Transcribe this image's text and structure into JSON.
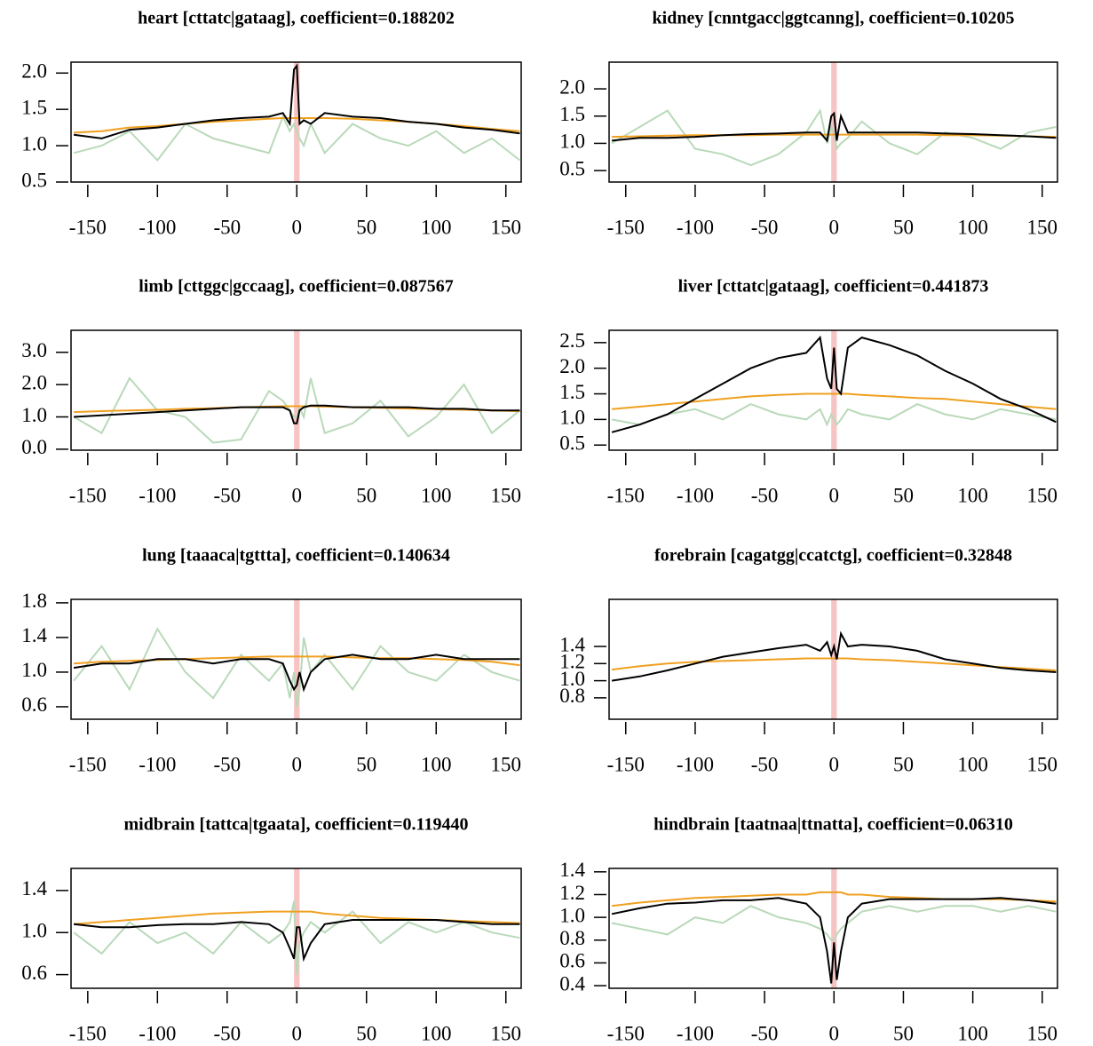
{
  "chart_data": [
    {
      "type": "line",
      "title": "heart [cttatc|gataag], coefficient=0.188202",
      "x": [
        -160,
        -140,
        -120,
        -100,
        -80,
        -60,
        -40,
        -20,
        -10,
        -5,
        -2,
        0,
        2,
        5,
        10,
        20,
        40,
        60,
        80,
        100,
        120,
        140,
        160
      ],
      "xlim": [
        -162,
        161
      ],
      "ylim": [
        0.5,
        2.15
      ],
      "xticks": [
        -150,
        -100,
        -50,
        0,
        50,
        100,
        150
      ],
      "yticks": [
        {
          "value": 0.5,
          "label": "0.5"
        },
        {
          "value": 1.0,
          "label": "1.0"
        },
        {
          "value": 1.5,
          "label": "1.5"
        },
        {
          "value": 2.0,
          "label": "2.0"
        }
      ],
      "highlight_x": [
        -2,
        2
      ],
      "highlight_color": "#f7c4c4",
      "series": [
        {
          "color": "#b9d9b9",
          "values": [
            0.9,
            1.0,
            1.2,
            0.8,
            1.3,
            1.1,
            1.0,
            0.9,
            1.4,
            1.2,
            1.3,
            1.2,
            1.1,
            1.0,
            1.3,
            0.9,
            1.3,
            1.1,
            1.0,
            1.2,
            0.9,
            1.1,
            0.8
          ]
        },
        {
          "color": "#f0a020",
          "values": [
            1.18,
            1.2,
            1.25,
            1.27,
            1.3,
            1.33,
            1.35,
            1.37,
            1.38,
            1.38,
            1.38,
            1.38,
            1.38,
            1.38,
            1.38,
            1.38,
            1.37,
            1.35,
            1.33,
            1.3,
            1.27,
            1.23,
            1.2
          ]
        },
        {
          "color": "#000000",
          "values": [
            1.15,
            1.1,
            1.22,
            1.25,
            1.3,
            1.35,
            1.38,
            1.4,
            1.45,
            1.3,
            2.05,
            2.1,
            1.3,
            1.35,
            1.3,
            1.45,
            1.4,
            1.38,
            1.33,
            1.3,
            1.25,
            1.22,
            1.17
          ]
        }
      ]
    },
    {
      "type": "line",
      "title": "kidney [cnntgacc|ggtcanng], coefficient=0.10205",
      "x": [
        -160,
        -140,
        -120,
        -100,
        -80,
        -60,
        -40,
        -20,
        -10,
        -5,
        -2,
        0,
        2,
        5,
        10,
        20,
        40,
        60,
        80,
        100,
        120,
        140,
        160
      ],
      "xlim": [
        -162,
        161
      ],
      "ylim": [
        0.29,
        2.49
      ],
      "xticks": [
        -150,
        -100,
        -50,
        0,
        50,
        100,
        150
      ],
      "yticks": [
        {
          "value": 0.5,
          "label": "0.5"
        },
        {
          "value": 1.0,
          "label": "1.0"
        },
        {
          "value": 1.5,
          "label": "1.5"
        },
        {
          "value": 2.0,
          "label": "2.0"
        }
      ],
      "highlight_x": [
        -2,
        2
      ],
      "highlight_color": "#f7c4c4",
      "series": [
        {
          "color": "#b9d9b9",
          "values": [
            1.0,
            1.3,
            1.6,
            0.9,
            0.8,
            0.6,
            0.8,
            1.2,
            1.6,
            1.0,
            1.3,
            1.2,
            0.9,
            1.0,
            1.1,
            1.4,
            1.0,
            0.8,
            1.2,
            1.1,
            0.9,
            1.2,
            1.3
          ]
        },
        {
          "color": "#f0a020",
          "values": [
            1.12,
            1.13,
            1.14,
            1.15,
            1.15,
            1.15,
            1.16,
            1.16,
            1.16,
            1.16,
            1.16,
            1.16,
            1.16,
            1.16,
            1.16,
            1.16,
            1.16,
            1.16,
            1.15,
            1.15,
            1.14,
            1.13,
            1.12
          ]
        },
        {
          "color": "#000000",
          "values": [
            1.05,
            1.1,
            1.1,
            1.12,
            1.15,
            1.17,
            1.18,
            1.2,
            1.2,
            1.05,
            1.5,
            1.55,
            1.05,
            1.5,
            1.2,
            1.2,
            1.2,
            1.2,
            1.18,
            1.17,
            1.15,
            1.13,
            1.1
          ]
        }
      ]
    },
    {
      "type": "line",
      "title": "limb [cttggc|gccaag], coefficient=0.087567",
      "x": [
        -160,
        -140,
        -120,
        -100,
        -80,
        -60,
        -40,
        -20,
        -10,
        -5,
        -2,
        0,
        2,
        5,
        10,
        20,
        40,
        60,
        80,
        100,
        120,
        140,
        160
      ],
      "xlim": [
        -162,
        161
      ],
      "ylim": [
        -0.03,
        3.68
      ],
      "xticks": [
        -150,
        -100,
        -50,
        0,
        50,
        100,
        150
      ],
      "yticks": [
        {
          "value": 0,
          "label": "0.0"
        },
        {
          "value": 1,
          "label": "1.0"
        },
        {
          "value": 2,
          "label": "2.0"
        },
        {
          "value": 3,
          "label": "3.0"
        }
      ],
      "highlight_x": [
        -2,
        2
      ],
      "highlight_color": "#f7c4c4",
      "series": [
        {
          "color": "#b9d9b9",
          "values": [
            1.0,
            0.5,
            2.2,
            1.2,
            1.0,
            0.2,
            0.3,
            1.8,
            1.5,
            1.2,
            1.0,
            1.0,
            1.3,
            1.0,
            2.2,
            0.5,
            0.8,
            1.5,
            0.4,
            1.0,
            2.0,
            0.5,
            1.2
          ]
        },
        {
          "color": "#f0a020",
          "values": [
            1.15,
            1.18,
            1.2,
            1.22,
            1.25,
            1.27,
            1.3,
            1.32,
            1.33,
            1.33,
            1.33,
            1.33,
            1.33,
            1.33,
            1.33,
            1.32,
            1.3,
            1.28,
            1.26,
            1.24,
            1.22,
            1.2,
            1.18
          ]
        },
        {
          "color": "#000000",
          "values": [
            1.0,
            1.05,
            1.1,
            1.15,
            1.2,
            1.25,
            1.3,
            1.3,
            1.3,
            1.2,
            0.8,
            0.8,
            1.2,
            1.3,
            1.35,
            1.35,
            1.3,
            1.3,
            1.3,
            1.25,
            1.25,
            1.2,
            1.2
          ]
        }
      ]
    },
    {
      "type": "line",
      "title": "liver [cttatc|gataag], coefficient=0.441873",
      "x": [
        -160,
        -140,
        -120,
        -100,
        -80,
        -60,
        -40,
        -20,
        -10,
        -5,
        -2,
        0,
        2,
        5,
        10,
        20,
        40,
        60,
        80,
        100,
        120,
        140,
        160
      ],
      "xlim": [
        -162,
        161
      ],
      "ylim": [
        0.4,
        2.74
      ],
      "xticks": [
        -150,
        -100,
        -50,
        0,
        50,
        100,
        150
      ],
      "yticks": [
        {
          "value": 0.5,
          "label": "0.5"
        },
        {
          "value": 1.0,
          "label": "1.0"
        },
        {
          "value": 1.5,
          "label": "1.5"
        },
        {
          "value": 2.0,
          "label": "2.0"
        },
        {
          "value": 2.5,
          "label": "2.5"
        }
      ],
      "highlight_x": [
        -2,
        2
      ],
      "highlight_color": "#f7c4c4",
      "series": [
        {
          "color": "#b9d9b9",
          "values": [
            1.0,
            0.9,
            1.1,
            1.2,
            1.0,
            1.3,
            1.1,
            1.0,
            1.2,
            0.9,
            1.1,
            1.0,
            0.9,
            1.0,
            1.2,
            1.1,
            1.0,
            1.3,
            1.1,
            1.0,
            1.2,
            1.1,
            1.0
          ]
        },
        {
          "color": "#f0a020",
          "values": [
            1.2,
            1.25,
            1.3,
            1.35,
            1.4,
            1.45,
            1.48,
            1.5,
            1.5,
            1.5,
            1.5,
            1.5,
            1.5,
            1.5,
            1.5,
            1.48,
            1.45,
            1.42,
            1.4,
            1.35,
            1.3,
            1.25,
            1.2
          ]
        },
        {
          "color": "#000000",
          "values": [
            0.75,
            0.9,
            1.1,
            1.4,
            1.7,
            2.0,
            2.2,
            2.3,
            2.6,
            1.8,
            1.6,
            2.4,
            1.6,
            1.5,
            2.4,
            2.6,
            2.45,
            2.25,
            1.95,
            1.7,
            1.4,
            1.2,
            0.95
          ]
        }
      ]
    },
    {
      "type": "line",
      "title": "lung [taaaca|tgttta], coefficient=0.140634",
      "x": [
        -160,
        -140,
        -120,
        -100,
        -80,
        -60,
        -40,
        -20,
        -10,
        -5,
        -2,
        0,
        2,
        5,
        10,
        20,
        40,
        60,
        80,
        100,
        120,
        140,
        160
      ],
      "xlim": [
        -162,
        161
      ],
      "ylim": [
        0.456,
        1.84
      ],
      "xticks": [
        -150,
        -100,
        -50,
        0,
        50,
        100,
        150
      ],
      "yticks": [
        {
          "value": 0.6,
          "label": "0.6"
        },
        {
          "value": 1.0,
          "label": "1.0"
        },
        {
          "value": 1.4,
          "label": "1.4"
        },
        {
          "value": 1.8,
          "label": "1.8"
        }
      ],
      "highlight_x": [
        -2,
        2
      ],
      "highlight_color": "#f7c4c4",
      "series": [
        {
          "color": "#b9d9b9",
          "values": [
            0.9,
            1.3,
            0.8,
            1.5,
            1.0,
            0.7,
            1.2,
            0.9,
            1.1,
            0.7,
            1.0,
            0.6,
            0.8,
            1.4,
            1.0,
            1.2,
            0.8,
            1.3,
            1.0,
            0.9,
            1.2,
            1.0,
            0.9
          ]
        },
        {
          "color": "#f0a020",
          "values": [
            1.1,
            1.12,
            1.13,
            1.14,
            1.15,
            1.16,
            1.17,
            1.18,
            1.18,
            1.18,
            1.18,
            1.18,
            1.18,
            1.18,
            1.18,
            1.18,
            1.17,
            1.16,
            1.16,
            1.15,
            1.14,
            1.12,
            1.08
          ]
        },
        {
          "color": "#000000",
          "values": [
            1.05,
            1.1,
            1.1,
            1.15,
            1.15,
            1.1,
            1.15,
            1.15,
            1.1,
            0.9,
            0.8,
            0.85,
            1.0,
            0.8,
            1.0,
            1.15,
            1.2,
            1.15,
            1.15,
            1.2,
            1.15,
            1.15,
            1.15
          ]
        }
      ]
    },
    {
      "type": "line",
      "title": "forebrain [cagatgg|ccatctg], coefficient=0.32848",
      "x": [
        -160,
        -140,
        -120,
        -100,
        -80,
        -60,
        -40,
        -20,
        -10,
        -5,
        -2,
        0,
        2,
        5,
        10,
        20,
        40,
        60,
        80,
        100,
        120,
        140,
        160
      ],
      "xlim": [
        -162,
        161
      ],
      "ylim": [
        0.55,
        1.95
      ],
      "xticks": [
        -150,
        -100,
        -50,
        0,
        50,
        100,
        150
      ],
      "yticks": [
        {
          "value": 0.8,
          "label": "0.8"
        },
        {
          "value": 1.0,
          "label": "1.0"
        },
        {
          "value": 1.2,
          "label": "1.2"
        },
        {
          "value": 1.4,
          "label": "1.4"
        }
      ],
      "highlight_x": [
        -2,
        2
      ],
      "highlight_color": "#f7c4c4",
      "series": [
        {
          "color": "#f0a020",
          "values": [
            1.13,
            1.17,
            1.2,
            1.22,
            1.23,
            1.24,
            1.25,
            1.26,
            1.26,
            1.26,
            1.26,
            1.26,
            1.26,
            1.26,
            1.26,
            1.25,
            1.24,
            1.22,
            1.2,
            1.18,
            1.16,
            1.14,
            1.12
          ]
        },
        {
          "color": "#000000",
          "values": [
            1.0,
            1.05,
            1.12,
            1.2,
            1.28,
            1.33,
            1.38,
            1.42,
            1.35,
            1.45,
            1.3,
            1.4,
            1.25,
            1.55,
            1.4,
            1.42,
            1.4,
            1.35,
            1.25,
            1.2,
            1.15,
            1.12,
            1.1
          ]
        }
      ]
    },
    {
      "type": "line",
      "title": "midbrain [tattca|tgaata], coefficient=0.119440",
      "x": [
        -160,
        -140,
        -120,
        -100,
        -80,
        -60,
        -40,
        -20,
        -10,
        -5,
        -2,
        0,
        2,
        5,
        10,
        20,
        40,
        60,
        80,
        100,
        120,
        140,
        160
      ],
      "xlim": [
        -162,
        161
      ],
      "ylim": [
        0.47,
        1.61
      ],
      "xticks": [
        -150,
        -100,
        -50,
        0,
        50,
        100,
        150
      ],
      "yticks": [
        {
          "value": 0.6,
          "label": "0.6"
        },
        {
          "value": 1.0,
          "label": "1.0"
        },
        {
          "value": 1.4,
          "label": "1.4"
        }
      ],
      "highlight_x": [
        -2,
        2
      ],
      "highlight_color": "#f7c4c4",
      "series": [
        {
          "color": "#b9d9b9",
          "values": [
            1.0,
            0.8,
            1.1,
            0.9,
            1.0,
            0.8,
            1.1,
            0.9,
            1.0,
            1.1,
            1.3,
            0.6,
            0.9,
            1.0,
            1.1,
            1.0,
            1.2,
            0.9,
            1.1,
            1.0,
            1.1,
            1.0,
            0.95
          ]
        },
        {
          "color": "#f0a020",
          "values": [
            1.08,
            1.1,
            1.12,
            1.14,
            1.16,
            1.18,
            1.19,
            1.2,
            1.2,
            1.2,
            1.2,
            1.2,
            1.2,
            1.2,
            1.2,
            1.18,
            1.16,
            1.14,
            1.13,
            1.12,
            1.11,
            1.1,
            1.09
          ]
        },
        {
          "color": "#000000",
          "values": [
            1.08,
            1.05,
            1.05,
            1.07,
            1.08,
            1.08,
            1.1,
            1.08,
            1.0,
            0.85,
            0.75,
            1.05,
            1.05,
            0.75,
            0.9,
            1.08,
            1.12,
            1.12,
            1.12,
            1.12,
            1.1,
            1.08,
            1.08
          ]
        }
      ]
    },
    {
      "type": "line",
      "title": "hindbrain [taatnaa|ttnatta], coefficient=0.06310",
      "x": [
        -160,
        -140,
        -120,
        -100,
        -80,
        -60,
        -40,
        -20,
        -10,
        -5,
        -2,
        0,
        2,
        5,
        10,
        20,
        40,
        60,
        80,
        100,
        120,
        140,
        160
      ],
      "xlim": [
        -162,
        161
      ],
      "ylim": [
        0.377,
        1.43
      ],
      "xticks": [
        -150,
        -100,
        -50,
        0,
        50,
        100,
        150
      ],
      "yticks": [
        {
          "value": 0.4,
          "label": "0.4"
        },
        {
          "value": 0.6,
          "label": "0.6"
        },
        {
          "value": 0.8,
          "label": "0.8"
        },
        {
          "value": 1.0,
          "label": "1.0"
        },
        {
          "value": 1.2,
          "label": "1.2"
        },
        {
          "value": 1.4,
          "label": "1.4"
        }
      ],
      "highlight_x": [
        -2,
        2
      ],
      "highlight_color": "#f7c4c4",
      "series": [
        {
          "color": "#b9d9b9",
          "values": [
            0.95,
            0.9,
            0.85,
            1.0,
            0.95,
            1.1,
            1.0,
            0.95,
            0.9,
            0.85,
            0.8,
            0.8,
            0.85,
            0.9,
            0.95,
            1.05,
            1.1,
            1.05,
            1.1,
            1.1,
            1.05,
            1.1,
            1.05
          ]
        },
        {
          "color": "#f0a020",
          "values": [
            1.1,
            1.13,
            1.15,
            1.17,
            1.18,
            1.19,
            1.2,
            1.2,
            1.22,
            1.22,
            1.22,
            1.22,
            1.22,
            1.22,
            1.2,
            1.2,
            1.18,
            1.17,
            1.16,
            1.16,
            1.16,
            1.15,
            1.14
          ]
        },
        {
          "color": "#000000",
          "values": [
            1.03,
            1.08,
            1.12,
            1.13,
            1.15,
            1.15,
            1.17,
            1.12,
            1.0,
            0.7,
            0.42,
            0.78,
            0.45,
            0.7,
            1.0,
            1.12,
            1.16,
            1.16,
            1.16,
            1.16,
            1.17,
            1.15,
            1.12
          ]
        }
      ]
    }
  ]
}
